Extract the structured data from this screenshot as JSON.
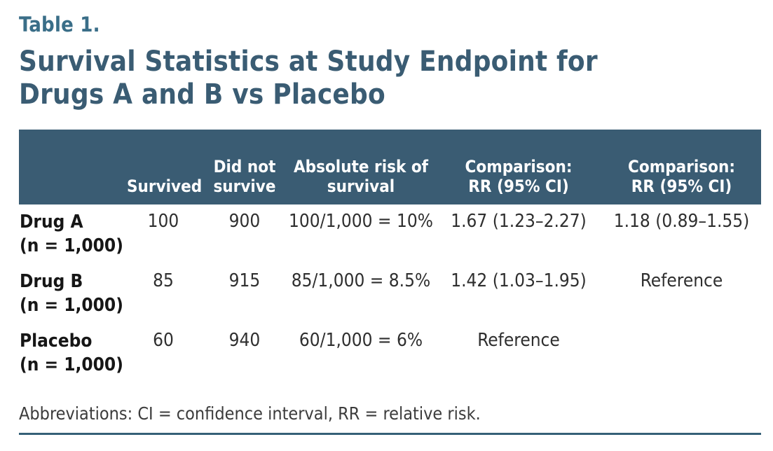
{
  "page": {
    "kicker": "Table 1.",
    "title_line1": "Survival Statistics at Study Endpoint for",
    "title_line2": "Drugs A and B vs Placebo",
    "footnote": "Abbreviations: CI = confidence interval, RR = relative risk."
  },
  "colors": {
    "header_band_teal": "#3a5c73",
    "kicker_teal": "#3a6e88",
    "rule_teal": "#356077",
    "body_text": "#2f2f2f"
  },
  "table": {
    "columns": [
      {
        "label": ""
      },
      {
        "label": "Survived"
      },
      {
        "label": "Did not\nsurvive"
      },
      {
        "label": "Absolute risk of\nsurvival"
      },
      {
        "label": "Comparison:\nRR (95% CI)"
      },
      {
        "label": "Comparison:\nRR (95% CI)"
      }
    ],
    "rows": [
      {
        "label": {
          "line1": "Drug A",
          "line2": "(n = 1,000)"
        },
        "cells": [
          "100",
          "900",
          "100/1,000 = 10%",
          "1.67 (1.23–2.27)",
          "1.18 (0.89–1.55)"
        ]
      },
      {
        "label": {
          "line1": "Drug B",
          "line2": "(n = 1,000)"
        },
        "cells": [
          "85",
          "915",
          "85/1,000 = 8.5%",
          "1.42 (1.03–1.95)",
          "Reference"
        ]
      },
      {
        "label": {
          "line1": "Placebo",
          "line2": "(n = 1,000)"
        },
        "cells": [
          "60",
          "940",
          "60/1,000 = 6%",
          "Reference",
          ""
        ]
      }
    ]
  },
  "chart_data": {
    "type": "table",
    "title": "Survival Statistics at Study Endpoint for Drugs A and B vs Placebo",
    "columns": [
      "",
      "Survived",
      "Did not survive",
      "Absolute risk of survival",
      "Comparison: RR (95% CI)",
      "Comparison: RR (95% CI)"
    ],
    "rows": [
      [
        "Drug A (n = 1,000)",
        "100",
        "900",
        "100/1,000 = 10%",
        "1.67 (1.23–2.27)",
        "1.18 (0.89–1.55)"
      ],
      [
        "Drug B (n = 1,000)",
        "85",
        "915",
        "85/1,000 = 8.5%",
        "1.42 (1.03–1.95)",
        "Reference"
      ],
      [
        "Placebo (n = 1,000)",
        "60",
        "940",
        "60/1,000 = 6%",
        "Reference",
        ""
      ]
    ],
    "footnote": "Abbreviations: CI = confidence interval, RR = relative risk."
  }
}
